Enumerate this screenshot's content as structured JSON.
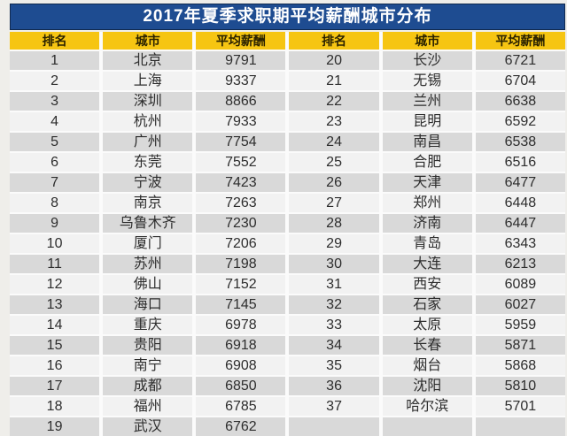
{
  "chart_data": {
    "type": "table",
    "title": "2017年夏季求职期平均薪酬城市分布",
    "columns": [
      "排名",
      "城市",
      "平均薪酬"
    ],
    "layout": "two column-groups side by side; ranks 1-19 left, 20-37 right; last right row empty",
    "entries": [
      {
        "rank": 1,
        "city": "北京",
        "salary": 9791
      },
      {
        "rank": 2,
        "city": "上海",
        "salary": 9337
      },
      {
        "rank": 3,
        "city": "深圳",
        "salary": 8866
      },
      {
        "rank": 4,
        "city": "杭州",
        "salary": 7933
      },
      {
        "rank": 5,
        "city": "广州",
        "salary": 7754
      },
      {
        "rank": 6,
        "city": "东莞",
        "salary": 7552
      },
      {
        "rank": 7,
        "city": "宁波",
        "salary": 7423
      },
      {
        "rank": 8,
        "city": "南京",
        "salary": 7263
      },
      {
        "rank": 9,
        "city": "乌鲁木齐",
        "salary": 7230
      },
      {
        "rank": 10,
        "city": "厦门",
        "salary": 7206
      },
      {
        "rank": 11,
        "city": "苏州",
        "salary": 7198
      },
      {
        "rank": 12,
        "city": "佛山",
        "salary": 7152
      },
      {
        "rank": 13,
        "city": "海口",
        "salary": 7145
      },
      {
        "rank": 14,
        "city": "重庆",
        "salary": 6978
      },
      {
        "rank": 15,
        "city": "贵阳",
        "salary": 6918
      },
      {
        "rank": 16,
        "city": "南宁",
        "salary": 6908
      },
      {
        "rank": 17,
        "city": "成都",
        "salary": 6850
      },
      {
        "rank": 18,
        "city": "福州",
        "salary": 6785
      },
      {
        "rank": 19,
        "city": "武汉",
        "salary": 6762
      },
      {
        "rank": 20,
        "city": "长沙",
        "salary": 6721
      },
      {
        "rank": 21,
        "city": "无锡",
        "salary": 6704
      },
      {
        "rank": 22,
        "city": "兰州",
        "salary": 6638
      },
      {
        "rank": 23,
        "city": "昆明",
        "salary": 6592
      },
      {
        "rank": 24,
        "city": "南昌",
        "salary": 6538
      },
      {
        "rank": 25,
        "city": "合肥",
        "salary": 6516
      },
      {
        "rank": 26,
        "city": "天津",
        "salary": 6477
      },
      {
        "rank": 27,
        "city": "郑州",
        "salary": 6448
      },
      {
        "rank": 28,
        "city": "济南",
        "salary": 6447
      },
      {
        "rank": 29,
        "city": "青岛",
        "salary": 6343
      },
      {
        "rank": 30,
        "city": "大连",
        "salary": 6213
      },
      {
        "rank": 31,
        "city": "西安",
        "salary": 6089
      },
      {
        "rank": 32,
        "city": "石家",
        "salary": 6027
      },
      {
        "rank": 33,
        "city": "太原",
        "salary": 5959
      },
      {
        "rank": 34,
        "city": "长春",
        "salary": 5871
      },
      {
        "rank": 35,
        "city": "烟台",
        "salary": 5868
      },
      {
        "rank": 36,
        "city": "沈阳",
        "salary": 5810
      },
      {
        "rank": 37,
        "city": "哈尔滨",
        "salary": 5701
      }
    ],
    "colors": {
      "title_bg": "#1e4c91",
      "title_border": "#10294e",
      "title_text": "#ffffff",
      "header_bg": "#f6c512",
      "header_text": "#2a2200",
      "row_odd_bg": "#d9d9d9",
      "row_even_bg": "#f2f2f2",
      "cell_text": "#2d2d2d",
      "page_bg": "#efeeea"
    }
  }
}
